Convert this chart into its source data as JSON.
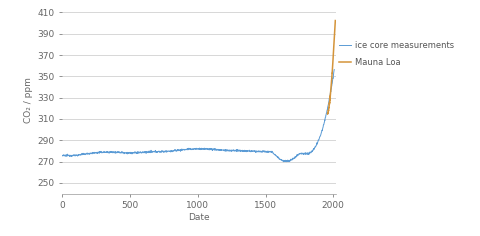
{
  "xlabel": "Date",
  "ylabel": "CO₂ / ppm",
  "xlim": [
    0,
    2020
  ],
  "ylim": [
    240,
    415
  ],
  "yticks": [
    250,
    270,
    290,
    310,
    330,
    350,
    370,
    390,
    410
  ],
  "xticks": [
    0,
    500,
    1000,
    1500,
    2000
  ],
  "ice_core_color": "#5b9bd5",
  "mauna_loa_color": "#d4943a",
  "legend_labels": [
    "ice core measurements",
    "Mauna Loa"
  ],
  "background_color": "#ffffff",
  "grid_color": "#c8c8c8",
  "figsize": [
    4.8,
    2.36
  ],
  "dpi": 100,
  "linewidth_ice": 0.7,
  "linewidth_mauna": 1.1
}
